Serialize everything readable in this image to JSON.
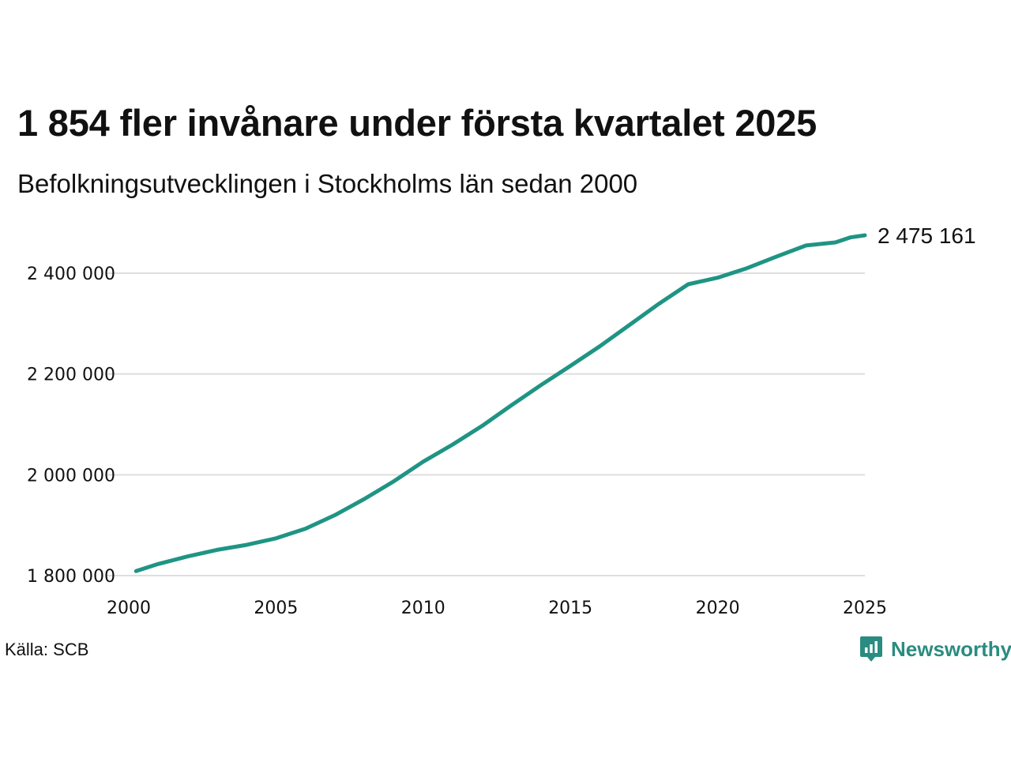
{
  "title": "1 854 fler invånare under första kvartalet 2025",
  "subtitle": "Befolkningsutvecklingen i Stockholms län sedan 2000",
  "source": "Källa: SCB",
  "brand": {
    "name": "Newsworthy",
    "color": "#2a8c80",
    "icon": "bar-chart-speech-bubble-icon"
  },
  "chart_data": {
    "type": "line",
    "color": "#1f9484",
    "grid": true,
    "xlim": [
      2000,
      2025
    ],
    "ylim": [
      1800000,
      2475161
    ],
    "x_ticks": [
      2000,
      2005,
      2010,
      2015,
      2020,
      2025
    ],
    "x_tick_labels": [
      "2000",
      "2005",
      "2010",
      "2015",
      "2020",
      "2025"
    ],
    "y_ticks": [
      1800000,
      2000000,
      2200000,
      2400000
    ],
    "y_tick_labels": [
      "1 800 000",
      "2 000 000",
      "2 200 000",
      "2 400 000"
    ],
    "end_label": "2 475 161",
    "series": [
      {
        "x": [
          2000.25,
          2001,
          2002,
          2003,
          2004,
          2005,
          2006,
          2007,
          2008,
          2009,
          2010,
          2011,
          2012,
          2013,
          2014,
          2015,
          2016,
          2017,
          2018,
          2019,
          2020,
          2021,
          2022,
          2023,
          2024,
          2024.5,
          2025
        ],
        "y": [
          1809000,
          1823000,
          1838000,
          1851000,
          1861000,
          1874000,
          1893000,
          1920000,
          1952000,
          1987000,
          2026000,
          2060000,
          2097000,
          2138000,
          2178000,
          2216000,
          2255000,
          2297000,
          2339000,
          2378000,
          2391000,
          2410000,
          2433000,
          2455000,
          2461000,
          2471000,
          2475161
        ]
      }
    ]
  }
}
